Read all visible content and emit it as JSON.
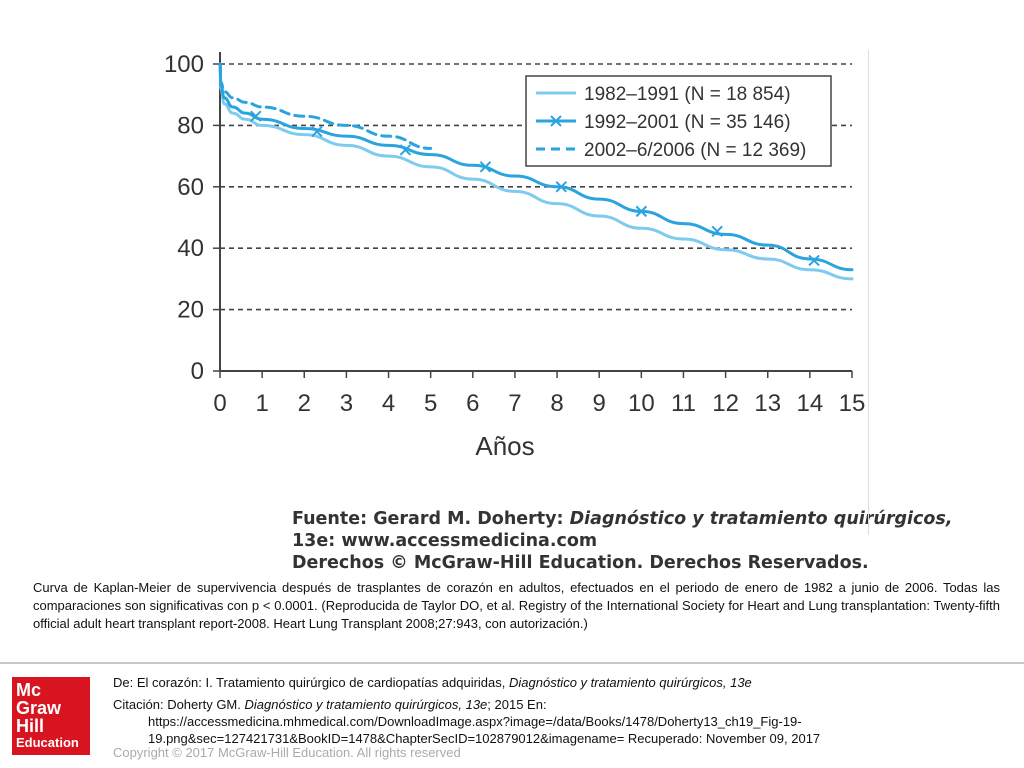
{
  "chart_data": {
    "type": "line",
    "xlabel": "Años",
    "ylabel": "",
    "xlim": [
      0,
      15
    ],
    "ylim": [
      0,
      100
    ],
    "x_ticks": [
      0,
      1,
      2,
      3,
      4,
      5,
      6,
      7,
      8,
      9,
      10,
      11,
      12,
      13,
      14,
      15
    ],
    "y_ticks": [
      0,
      20,
      40,
      60,
      80,
      100
    ],
    "grid": "horizontal-dashed",
    "legend_position": "top-right",
    "series": [
      {
        "name": "1982–1991 (N = 18 854)",
        "color": "#7ecbef",
        "style": "solid",
        "marker": "none",
        "points": [
          [
            0,
            100
          ],
          [
            0.02,
            92
          ],
          [
            0.1,
            87
          ],
          [
            0.3,
            84
          ],
          [
            0.6,
            82
          ],
          [
            1,
            80
          ],
          [
            2,
            77
          ],
          [
            3,
            73.5
          ],
          [
            4,
            70
          ],
          [
            5,
            66.5
          ],
          [
            6,
            62.5
          ],
          [
            7,
            58.5
          ],
          [
            8,
            54.5
          ],
          [
            9,
            50.5
          ],
          [
            10,
            46.5
          ],
          [
            11,
            43
          ],
          [
            12,
            39.5
          ],
          [
            13,
            36.5
          ],
          [
            14,
            33
          ],
          [
            15,
            30
          ]
        ]
      },
      {
        "name": "1992–2001 (N = 35 146)",
        "color": "#2aa3df",
        "style": "solid",
        "marker": "x",
        "points": [
          [
            0,
            100
          ],
          [
            0.02,
            93
          ],
          [
            0.1,
            89
          ],
          [
            0.3,
            86
          ],
          [
            0.6,
            84
          ],
          [
            1,
            82
          ],
          [
            2,
            79
          ],
          [
            3,
            76.5
          ],
          [
            4,
            73.5
          ],
          [
            5,
            70.5
          ],
          [
            6,
            67
          ],
          [
            7,
            63.5
          ],
          [
            8,
            60
          ],
          [
            9,
            56
          ],
          [
            10,
            52
          ],
          [
            11,
            48
          ],
          [
            12,
            44.5
          ],
          [
            13,
            41
          ],
          [
            14,
            36.5
          ],
          [
            15,
            33
          ]
        ],
        "marker_points": [
          [
            0.85,
            83
          ],
          [
            2.3,
            78
          ],
          [
            4.4,
            72
          ],
          [
            6.3,
            66.5
          ],
          [
            8.1,
            60
          ],
          [
            10,
            52
          ],
          [
            11.8,
            45.5
          ],
          [
            14.1,
            36
          ]
        ]
      },
      {
        "name": "2002–6/2006 (N = 12 369)",
        "color": "#2aa3df",
        "style": "dashed",
        "marker": "none",
        "points": [
          [
            0,
            100
          ],
          [
            0.02,
            94
          ],
          [
            0.1,
            91
          ],
          [
            0.3,
            89
          ],
          [
            0.6,
            87.5
          ],
          [
            1,
            86
          ],
          [
            2,
            83
          ],
          [
            3,
            80
          ],
          [
            4,
            76.5
          ],
          [
            5,
            72.5
          ]
        ]
      }
    ]
  },
  "source": {
    "line1_prefix": "Fuente: Gerard M. Doherty: ",
    "line1_italic": "Diagnóstico y tratamiento quirúrgicos,",
    "line2": "13e: www.accessmedicina.com",
    "line3": "Derechos © McGraw-Hill Education. Derechos Reservados."
  },
  "caption": "Curva de Kaplan-Meier de supervivencia después de trasplantes de corazón en adultos, efectuados en el periodo de enero de 1982 a junio de 2006. Todas las comparaciones son significativas con p < 0.0001. (Reproducida de Taylor DO, et al. Registry of the International Society for Heart and Lung transplantation: Twenty-fifth official adult heart transplant report-2008. Heart Lung Transplant 2008;27:943, con autorización.)",
  "footer": {
    "logo": {
      "line1": "Mc",
      "line2": "Graw",
      "line3": "Hill",
      "line4": "Education",
      "color": "#d7141f"
    },
    "de_prefix": "De: El corazón: I. Tratamiento quirúrgico de cardiopatías adquiridas, ",
    "de_italic": "Diagnóstico y tratamiento quirúrgicos, 13e",
    "citation_prefix": "Citación: Doherty GM. ",
    "citation_italic": "Diagnóstico y tratamiento quirúrgicos, 13e",
    "citation_suffix": "; 2015 En:",
    "url_line1": "https://accessmedicina.mhmedical.com/DownloadImage.aspx?image=/data/Books/1478/Doherty13_ch19_Fig-19-",
    "url_line2": "19.png&sec=127421731&BookID=1478&ChapterSecID=102879012&imagename= Recuperado: November 09, 2017",
    "copyright": "Copyright © 2017 McGraw-Hill Education. All rights reserved"
  }
}
